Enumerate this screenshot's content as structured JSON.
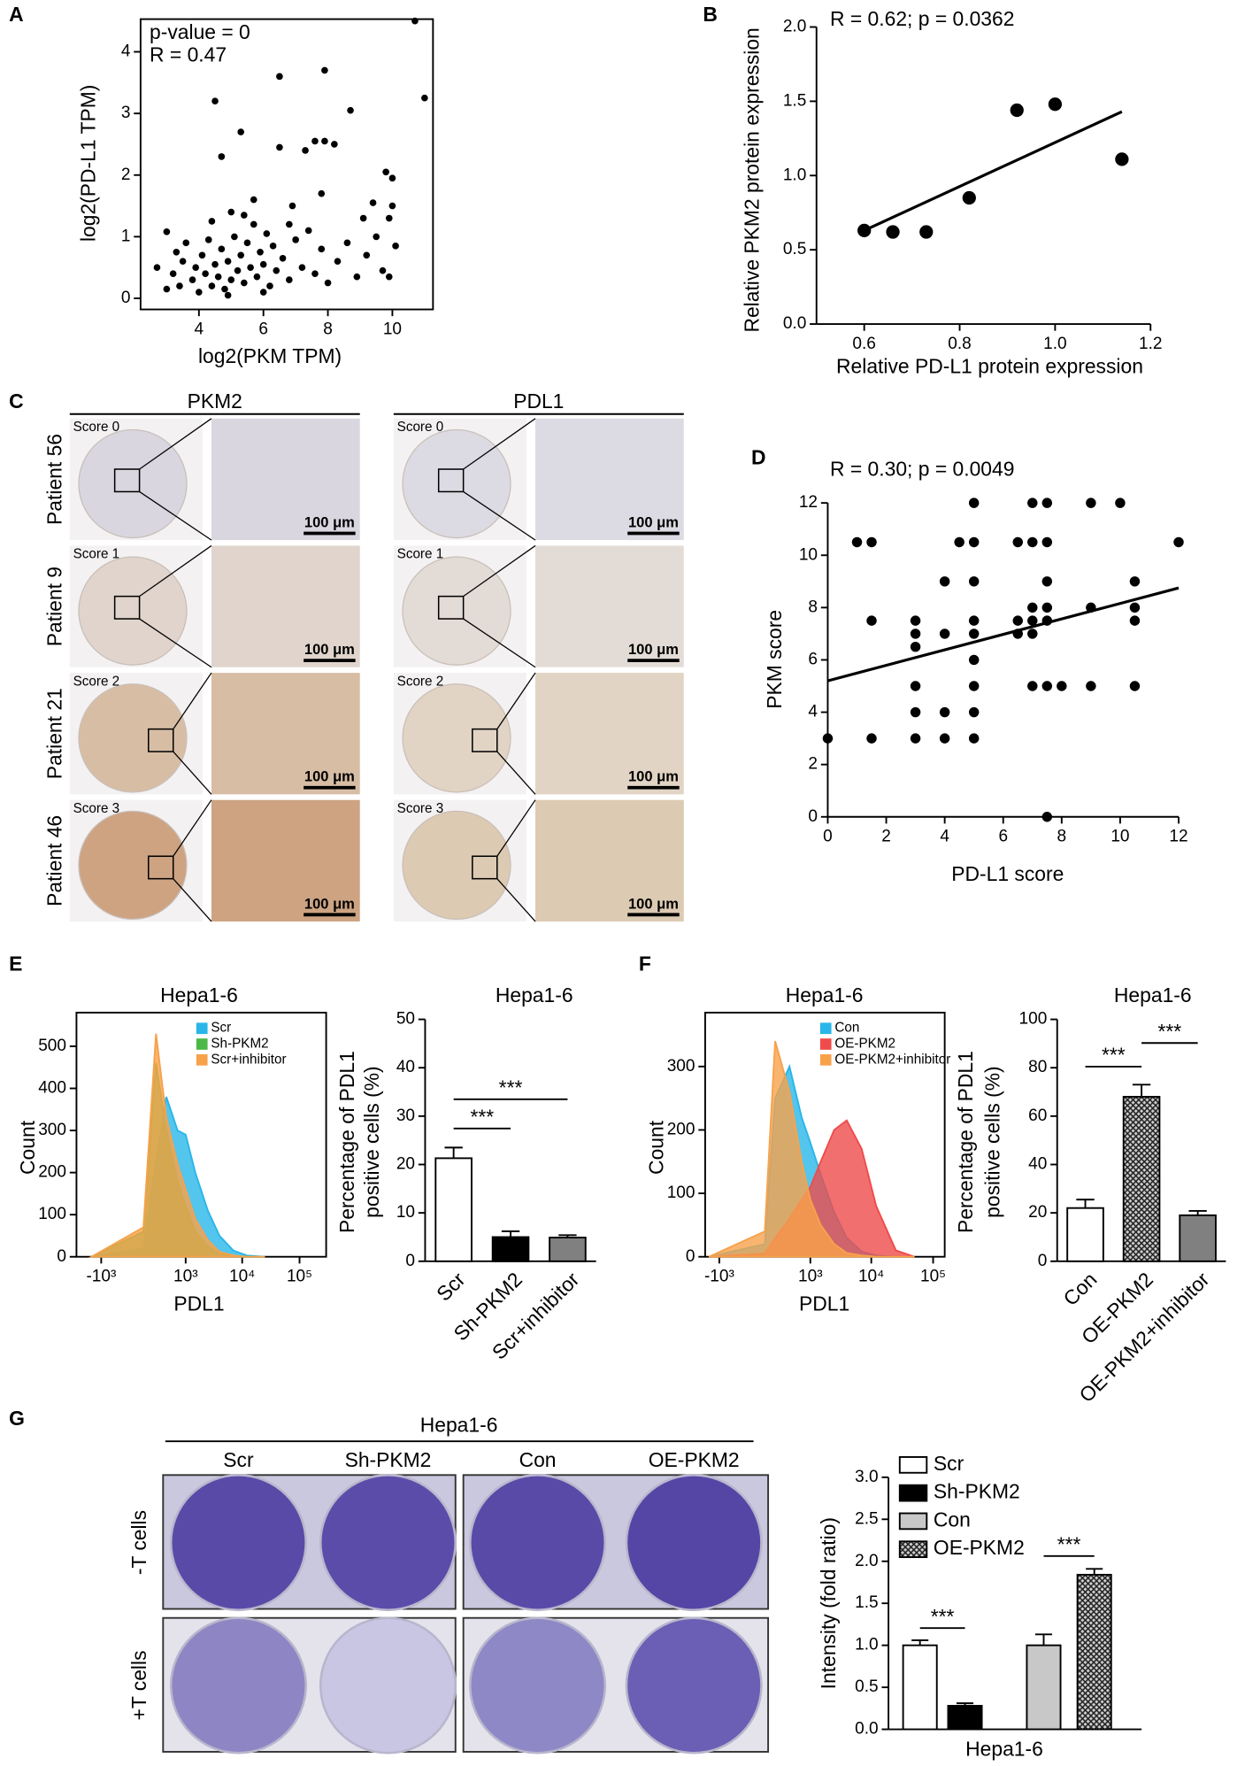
{
  "panel_labels": [
    "A",
    "B",
    "C",
    "D",
    "E",
    "F",
    "G"
  ],
  "ihc": {
    "columns": [
      "PKM2",
      "PDL1"
    ],
    "rows": [
      "Patient 56",
      "Patient 9",
      "Patient 21",
      "Patient 46"
    ],
    "scores": [
      "Score 0",
      "Score 1",
      "Score 2",
      "Score 3"
    ],
    "scale_bar": "100 μm"
  },
  "colony": {
    "title": "Hepa1-6",
    "columns": [
      "Scr",
      "Sh-PKM2",
      "Con",
      "OE-PKM2"
    ],
    "rows": [
      "-T cells",
      "+T cells"
    ]
  },
  "chart_data": [
    {
      "type": "scatter",
      "annotations": [
        "p-value = 0",
        "R = 0.47"
      ],
      "xlabel": "log2(PKM TPM)",
      "ylabel": "log2(PD-L1 TPM)",
      "xlim": [
        2.19,
        11.26
      ],
      "xticks": [
        4,
        6,
        8,
        10
      ],
      "ylim": [
        -0.18,
        4.53
      ],
      "yticks": [
        0,
        1,
        2,
        3,
        4
      ],
      "color": "#000000",
      "x": [
        10.7,
        11.0,
        6.5,
        7.9,
        4.5,
        8.7,
        5.3,
        7.6,
        7.9,
        8.2,
        6.5,
        7.3,
        9.8,
        10.0,
        4.7,
        7.8,
        5.7,
        9.4,
        3.0,
        10.0,
        9.9,
        6.9,
        5.0,
        9.1,
        3.2,
        3.4,
        3.5,
        3.6,
        3.8,
        3.9,
        4.0,
        4.1,
        4.2,
        4.3,
        4.4,
        4.5,
        4.6,
        4.7,
        4.8,
        4.9,
        5.0,
        5.1,
        5.2,
        5.3,
        5.4,
        5.5,
        5.6,
        5.7,
        5.8,
        5.9,
        6.0,
        6.1,
        6.2,
        6.3,
        6.4,
        6.6,
        6.8,
        7.0,
        7.2,
        7.4,
        7.6,
        7.8,
        8.0,
        8.3,
        8.6,
        8.9,
        9.2,
        9.5,
        9.7,
        9.9,
        10.1,
        2.7,
        3.0,
        4.4,
        5.4,
        6.8,
        3.3,
        4.9,
        6.0
      ],
      "y": [
        4.5,
        3.25,
        3.6,
        3.7,
        3.2,
        3.05,
        2.7,
        2.55,
        2.55,
        2.5,
        2.45,
        2.4,
        2.05,
        1.95,
        2.3,
        1.7,
        1.6,
        1.55,
        1.08,
        1.5,
        1.3,
        1.5,
        1.4,
        1.3,
        0.4,
        0.2,
        0.6,
        0.9,
        0.3,
        0.5,
        0.1,
        0.7,
        0.4,
        0.95,
        0.2,
        0.55,
        0.35,
        0.8,
        0.15,
        0.6,
        0.3,
        1.0,
        0.45,
        0.7,
        0.25,
        0.9,
        0.5,
        1.2,
        0.35,
        0.75,
        0.55,
        1.05,
        0.2,
        0.85,
        0.45,
        0.65,
        0.3,
        0.95,
        0.5,
        1.1,
        0.4,
        0.8,
        0.25,
        0.6,
        0.9,
        0.35,
        0.7,
        1.0,
        0.45,
        0.35,
        0.85,
        0.5,
        0.15,
        1.25,
        1.35,
        1.2,
        0.75,
        0.05,
        0.1
      ]
    },
    {
      "type": "scatter",
      "annotations": [
        "R = 0.62; p = 0.0362"
      ],
      "xlabel": "Relative PD-L1 protein expression",
      "ylabel": "Relative PKM2 protein expression",
      "xlim": [
        0.5,
        1.2
      ],
      "xticks": [
        0.6,
        0.8,
        {
          "value": 1,
          "label": "1.0"
        },
        1.2
      ],
      "ylim": [
        0,
        2
      ],
      "yticks": [
        {
          "value": 0,
          "label": "0.0"
        },
        0.5,
        {
          "value": 1,
          "label": "1.0"
        },
        1.5,
        {
          "value": 2,
          "label": "2.0"
        }
      ],
      "color": "#000000",
      "x": [
        0.6,
        0.66,
        0.73,
        0.82,
        0.92,
        1.0,
        1.14
      ],
      "y": [
        0.63,
        0.62,
        0.62,
        0.85,
        1.44,
        1.48,
        1.11
      ],
      "fit": {
        "x": [
          0.6,
          1.14
        ],
        "y": [
          0.63,
          1.43
        ]
      }
    },
    {
      "type": "scatter",
      "annotations": [
        "R = 0.30; p = 0.0049"
      ],
      "xlabel": "PD-L1 score",
      "ylabel": "PKM score",
      "xlim": [
        0,
        12
      ],
      "xticks": [
        0,
        2,
        4,
        6,
        8,
        10,
        12
      ],
      "ylim": [
        0,
        12
      ],
      "yticks": [
        0,
        2,
        4,
        6,
        8,
        10,
        12
      ],
      "color": "#000000",
      "x": [
        0,
        1.5,
        3,
        3,
        3,
        3,
        3,
        4,
        4,
        4,
        4,
        4.5,
        5,
        5,
        5,
        5,
        5,
        5,
        5,
        5,
        5,
        1,
        1.5,
        1.5,
        6.5,
        6.5,
        7,
        7,
        7,
        7,
        7,
        7,
        7.5,
        7.5,
        7.5,
        7.5,
        7.5,
        7.5,
        7.5,
        8,
        9,
        9,
        9,
        10,
        10.5,
        10.5,
        10.5,
        10.5,
        12,
        3,
        6.5
      ],
      "y": [
        3,
        3,
        3,
        4,
        5,
        6.5,
        7.5,
        3,
        4,
        7,
        9,
        10.5,
        3,
        4,
        5,
        6,
        7,
        7.5,
        9,
        10.5,
        12,
        10.5,
        10.5,
        7.5,
        7.5,
        10.5,
        5,
        7,
        7.5,
        8,
        10.5,
        12,
        0,
        5,
        7.5,
        8,
        9,
        10.5,
        12,
        5,
        5,
        8,
        12,
        12,
        5,
        7.5,
        8,
        9,
        10.5,
        7,
        7
      ],
      "fit": {
        "x": [
          0,
          12
        ],
        "y": [
          5.2,
          8.75
        ]
      }
    },
    {
      "type": "area",
      "title": "Hepa1-6",
      "xlabel": "PDL1",
      "ylabel": "Count",
      "xscale": "biexponential",
      "xlim": [
        -2780,
        291000
      ],
      "xticks": [
        {
          "value": -1000,
          "label": "-10³"
        },
        {
          "value": 1000,
          "label": "10³"
        },
        {
          "value": 10000,
          "label": "10⁴"
        },
        {
          "value": 100000,
          "label": "10⁵"
        }
      ],
      "ylim": [
        0,
        580
      ],
      "yticks": [
        0,
        100,
        200,
        300,
        400,
        500
      ],
      "legend": "upper right",
      "x": [
        -1500,
        0,
        200,
        400,
        700,
        1000,
        1500,
        2500,
        4000,
        7000,
        12000,
        25000
      ],
      "series": [
        {
          "name": "Scr",
          "color": "#29b6e8",
          "values": [
            0,
            20,
            230,
            380,
            300,
            290,
            200,
            110,
            50,
            15,
            3,
            0
          ]
        },
        {
          "name": "Sh-PKM2",
          "color": "#4cb848",
          "values": [
            0,
            60,
            460,
            300,
            180,
            120,
            60,
            25,
            8,
            2,
            0,
            0
          ]
        },
        {
          "name": "Scr+inhibitor",
          "color": "#f7a24b",
          "values": [
            0,
            70,
            530,
            330,
            220,
            160,
            90,
            40,
            12,
            3,
            0,
            0
          ]
        }
      ]
    },
    {
      "type": "bar",
      "title": "Hepa1-6",
      "ylabel": [
        "Percentage of PDL1",
        "positive cells (%)"
      ],
      "categories": [
        "Scr",
        "Sh-PKM2",
        "Scr+inhibitor"
      ],
      "values": [
        21.3,
        5.0,
        4.9
      ],
      "errors": [
        2.2,
        1.2,
        0.5
      ],
      "colors": [
        "#ffffff",
        "#000000",
        "#808080"
      ],
      "hatched": [
        false,
        false,
        false
      ],
      "ylim": [
        0,
        50
      ],
      "yticks": [
        0,
        10,
        20,
        30,
        40,
        50
      ],
      "significance": [
        "***",
        "***"
      ]
    },
    {
      "type": "area",
      "title": "Hepa1-6",
      "xlabel": "PDL1",
      "ylabel": "Count",
      "xscale": "biexponential",
      "xlim": [
        -1730,
        154000
      ],
      "xticks": [
        {
          "value": -1000,
          "label": "-10³"
        },
        {
          "value": 1000,
          "label": "10³"
        },
        {
          "value": 10000,
          "label": "10⁴"
        },
        {
          "value": 100000,
          "label": "10⁵"
        }
      ],
      "ylim": [
        0,
        385
      ],
      "yticks": [
        0,
        100,
        200,
        300
      ],
      "legend": "upper right",
      "x": [
        -1500,
        0,
        150,
        400,
        700,
        1000,
        1500,
        2500,
        4000,
        7000,
        12000,
        25000,
        50000
      ],
      "series": [
        {
          "name": "Con",
          "color": "#29b6e8",
          "values": [
            0,
            20,
            250,
            300,
            220,
            180,
            130,
            70,
            30,
            8,
            2,
            0,
            0
          ]
        },
        {
          "name": "OE-PKM2",
          "color": "#ef4b4b",
          "values": [
            0,
            5,
            30,
            60,
            90,
            110,
            150,
            200,
            215,
            170,
            80,
            10,
            0
          ]
        },
        {
          "name": "OE-PKM2+inhibitor",
          "color": "#f7a24b",
          "values": [
            0,
            40,
            340,
            260,
            150,
            90,
            50,
            20,
            6,
            2,
            0,
            0,
            0
          ]
        }
      ]
    },
    {
      "type": "bar",
      "title": "Hepa1-6",
      "ylabel": [
        "Percentage of PDL1",
        "positive cells (%)"
      ],
      "categories": [
        "Con",
        "OE-PKM2",
        "OE-PKM2+inhibitor"
      ],
      "values": [
        22,
        68,
        19
      ],
      "errors": [
        3.5,
        5,
        1.8
      ],
      "colors": [
        "#ffffff",
        "#404040",
        "#808080"
      ],
      "hatched": [
        false,
        true,
        false
      ],
      "ylim": [
        0,
        100
      ],
      "yticks": [
        0,
        20,
        40,
        60,
        80,
        100
      ],
      "significance": [
        "***",
        "***"
      ]
    },
    {
      "type": "bar",
      "xlabel": "Hepa1-6",
      "ylabel": "Intensity (fold ratio)",
      "ylim": [
        0,
        3
      ],
      "yticks": [
        {
          "value": 0,
          "label": "0.0"
        },
        0.5,
        {
          "value": 1,
          "label": "1.0"
        },
        1.5,
        {
          "value": 2,
          "label": "2.0"
        },
        2.5,
        {
          "value": 3,
          "label": "3.0"
        }
      ],
      "legend": "upper left",
      "series": [
        {
          "name": "Scr",
          "color": "#ffffff",
          "values": [
            1.0
          ],
          "errors": [
            0.06
          ]
        },
        {
          "name": "Sh-PKM2",
          "color": "#000000",
          "values": [
            0.28
          ],
          "errors": [
            0.03
          ]
        },
        {
          "name": "Con",
          "color": "#c8c8c8",
          "values": [
            1.0
          ],
          "errors": [
            0.13
          ]
        },
        {
          "name": "OE-PKM2",
          "color": "#404040",
          "hatched": true,
          "values": [
            1.84
          ],
          "errors": [
            0.07
          ]
        }
      ],
      "significance": [
        "***",
        "***"
      ]
    }
  ]
}
